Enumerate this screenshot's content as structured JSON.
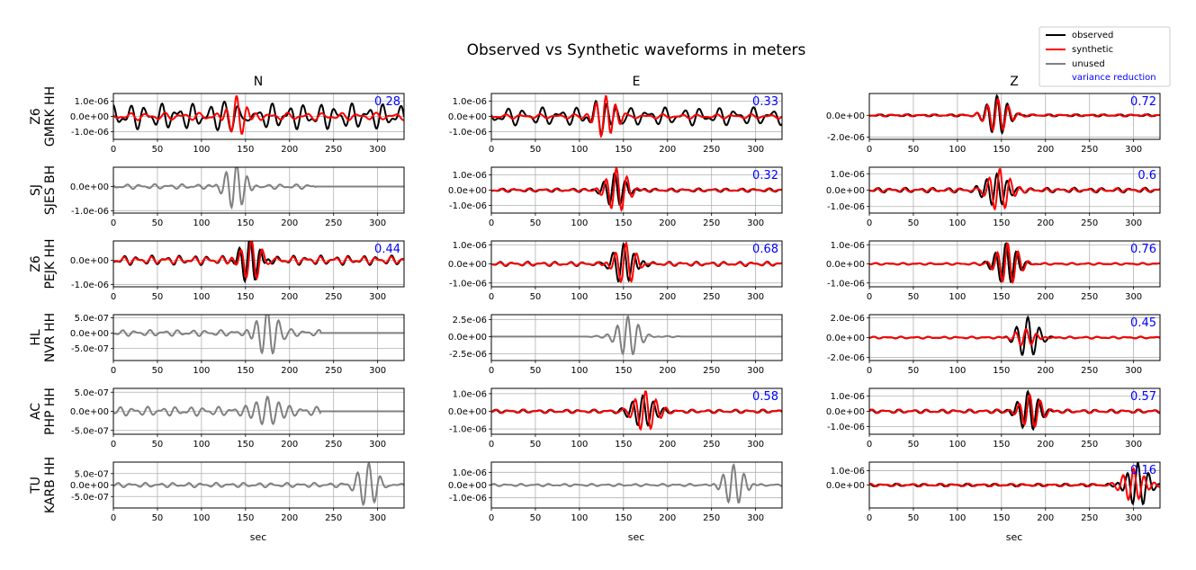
{
  "title": "Observed vs Synthetic waveforms in meters",
  "column_titles": [
    "N",
    "E",
    "Z"
  ],
  "xlabel": "sec",
  "legend": {
    "entries": [
      "observed",
      "synthetic",
      "unused"
    ],
    "extra_text": "variance reduction",
    "placement": "top-right"
  },
  "colors": {
    "observed": "#000000",
    "synthetic": "#ff0000",
    "unused": "#808080",
    "variance_reduction": "#0000ff",
    "grid": "#b0b0b0"
  },
  "chart_data": {
    "type": "line",
    "x_range": [
      0,
      330
    ],
    "x_ticks": [
      0,
      50,
      100,
      150,
      200,
      250,
      300
    ],
    "x_tick_labels": [
      "0",
      "50",
      "100",
      "150",
      "200",
      "250",
      "300"
    ],
    "grid": true,
    "stations": [
      {
        "network": "Z6",
        "station": "GMRK",
        "channel": "HH",
        "label_line1": "Z6",
        "label_line2": "GMRK HH",
        "components": [
          {
            "comp": "N",
            "used": true,
            "ylim": [
              -1.5e-06,
              1.5e-06
            ],
            "yticks": [
              1e-06,
              0,
              -1e-06
            ],
            "ytick_labels": [
              "1.0e-06",
              "0.0e+00",
              "-1.0e-06"
            ],
            "vr": "0.28",
            "obs": {
              "amp": 1e-06,
              "t0": 140,
              "period": 13,
              "peak": 1.35e-06,
              "bg": 8.5e-07,
              "bg_period": 18
            },
            "syn": {
              "amp": 1.3e-06,
              "t0": 140,
              "period": 12,
              "bg": 2.5e-07,
              "bg_period": 20
            }
          },
          {
            "comp": "E",
            "used": true,
            "ylim": [
              -1.5e-06,
              1.5e-06
            ],
            "yticks": [
              1e-06,
              0,
              -1e-06
            ],
            "ytick_labels": [
              "1.0e-06",
              "0.0e+00",
              "-1.0e-06"
            ],
            "vr": "0.33",
            "obs": {
              "amp": 1.1e-06,
              "t0": 130,
              "period": 12,
              "peak": 1.35e-06,
              "bg": 6e-07,
              "bg_period": 20
            },
            "syn": {
              "amp": 1.3e-06,
              "t0": 130,
              "period": 11,
              "bg": 1.5e-07,
              "bg_period": 20
            }
          },
          {
            "comp": "Z",
            "used": true,
            "ylim": [
              -2.2e-06,
              2e-06
            ],
            "yticks": [
              0,
              -2e-06
            ],
            "ytick_labels": [
              "0.0e+00",
              "-2.0e-06"
            ],
            "vr": "0.72",
            "obs": {
              "amp": 1.8e-06,
              "t0": 145,
              "period": 12,
              "peak": 1.9e-06,
              "bg": 1e-07,
              "bg_period": 16
            },
            "syn": {
              "amp": 1.6e-06,
              "t0": 146,
              "period": 12,
              "bg": 1e-07,
              "bg_period": 16
            }
          }
        ]
      },
      {
        "network": "SJ",
        "station": "SJES",
        "channel": "BH",
        "label_line1": "SJ",
        "label_line2": "SJES BH",
        "components": [
          {
            "comp": "N",
            "used": false,
            "ylim": [
              -1.1e-06,
              8e-07
            ],
            "yticks": [
              0,
              -1e-06
            ],
            "ytick_labels": [
              "0.0e+00",
              "-1.0e-06"
            ],
            "vr": "",
            "obs": {
              "amp": 9e-07,
              "t0": 140,
              "period": 12,
              "peak": 1e-06,
              "bg": 1e-07,
              "bg_period": 16,
              "end": 230
            }
          },
          {
            "comp": "E",
            "used": true,
            "ylim": [
              -1.5e-06,
              1.5e-06
            ],
            "yticks": [
              1e-06,
              0,
              -1e-06
            ],
            "ytick_labels": [
              "1.0e-06",
              "0.0e+00",
              "-1.0e-06"
            ],
            "vr": "0.32",
            "obs": {
              "amp": 1.1e-06,
              "t0": 140,
              "period": 12,
              "peak": 1.2e-06,
              "bg": 1.2e-07,
              "bg_period": 16
            },
            "syn": {
              "amp": 1.4e-06,
              "t0": 142,
              "period": 12,
              "bg": 1e-07,
              "bg_period": 16
            }
          },
          {
            "comp": "Z",
            "used": true,
            "ylim": [
              -1.4e-06,
              1.4e-06
            ],
            "yticks": [
              1e-06,
              0,
              -1e-06
            ],
            "ytick_labels": [
              "1.0e-06",
              "0.0e+00",
              "-1.0e-06"
            ],
            "vr": "0.6",
            "obs": {
              "amp": 1.1e-06,
              "t0": 145,
              "period": 12,
              "peak": 1.3e-06,
              "bg": 1.5e-07,
              "bg_period": 16
            },
            "syn": {
              "amp": 1.3e-06,
              "t0": 148,
              "period": 12,
              "bg": 1.3e-07,
              "bg_period": 16
            }
          }
        ]
      },
      {
        "network": "Z6",
        "station": "PEJK",
        "channel": "HH",
        "label_line1": "Z6",
        "label_line2": "PEJK HH",
        "components": [
          {
            "comp": "N",
            "used": true,
            "ylim": [
              -1.1e-06,
              8e-07
            ],
            "yticks": [
              0,
              -1e-06
            ],
            "ytick_labels": [
              "0.0e+00",
              "-1.0e-06"
            ],
            "vr": "0.44",
            "obs": {
              "amp": 8e-07,
              "t0": 155,
              "period": 12,
              "peak": 1.1e-06,
              "bg": 2e-07,
              "bg_period": 16
            },
            "syn": {
              "amp": 8e-07,
              "t0": 157,
              "period": 12,
              "bg": 1.5e-07,
              "bg_period": 16
            }
          },
          {
            "comp": "E",
            "used": true,
            "ylim": [
              -1.2e-06,
              1.2e-06
            ],
            "yticks": [
              1e-06,
              0,
              -1e-06
            ],
            "ytick_labels": [
              "1.0e-06",
              "0.0e+00",
              "-1.0e-06"
            ],
            "vr": "0.68",
            "obs": {
              "amp": 1e-06,
              "t0": 150,
              "period": 12,
              "peak": 1.1e-06,
              "bg": 1.2e-07,
              "bg_period": 16
            },
            "syn": {
              "amp": 1e-06,
              "t0": 153,
              "period": 12,
              "bg": 1e-07,
              "bg_period": 16
            }
          },
          {
            "comp": "Z",
            "used": true,
            "ylim": [
              -1.2e-06,
              1.2e-06
            ],
            "yticks": [
              1e-06,
              0,
              -1e-06
            ],
            "ytick_labels": [
              "1.0e-06",
              "0.0e+00",
              "-1.0e-06"
            ],
            "vr": "0.76",
            "obs": {
              "amp": 1.1e-06,
              "t0": 155,
              "period": 12,
              "peak": 1.2e-06,
              "bg": 5e-08,
              "bg_period": 16
            },
            "syn": {
              "amp": 1.1e-06,
              "t0": 157,
              "period": 12,
              "bg": 5e-08,
              "bg_period": 16
            }
          }
        ]
      },
      {
        "network": "HL",
        "station": "NVR",
        "channel": "HH",
        "label_line1": "HL",
        "label_line2": "NVR HH",
        "components": [
          {
            "comp": "N",
            "used": false,
            "ylim": [
              -9e-07,
              6e-07
            ],
            "yticks": [
              5e-07,
              0,
              -5e-07
            ],
            "ytick_labels": [
              "5.0e-07",
              "0.0e+00",
              "-5.0e-07"
            ],
            "vr": "",
            "obs": {
              "amp": 8e-07,
              "t0": 175,
              "period": 13,
              "peak": 9e-07,
              "bg": 1e-07,
              "bg_period": 16,
              "end": 235
            }
          },
          {
            "comp": "E",
            "used": false,
            "ylim": [
              -3.5e-06,
              3.2e-06
            ],
            "yticks": [
              2.5e-06,
              0,
              -2.5e-06
            ],
            "ytick_labels": [
              "2.5e-06",
              "0.0e+00",
              "-2.5e-06"
            ],
            "vr": "",
            "obs": {
              "amp": 3e-06,
              "t0": 155,
              "period": 12,
              "peak": 3.3e-06,
              "bg": 1e-07,
              "bg_period": 16,
              "start": 110,
              "end": 215
            }
          },
          {
            "comp": "Z",
            "used": true,
            "ylim": [
              -2.3e-06,
              2.3e-06
            ],
            "yticks": [
              2e-06,
              0,
              -2e-06
            ],
            "ytick_labels": [
              "2.0e-06",
              "0.0e+00",
              "-2.0e-06"
            ],
            "vr": "0.45",
            "obs": {
              "amp": 2e-06,
              "t0": 180,
              "period": 13,
              "peak": 2.2e-06,
              "bg": 1e-07,
              "bg_period": 16
            },
            "syn": {
              "amp": 8e-07,
              "t0": 178,
              "period": 12,
              "bg": 1e-07,
              "bg_period": 16
            }
          }
        ]
      },
      {
        "network": "AC",
        "station": "PHP",
        "channel": "HH",
        "label_line1": "AC",
        "label_line2": "PHP HH",
        "components": [
          {
            "comp": "N",
            "used": false,
            "ylim": [
              -6e-07,
              6e-07
            ],
            "yticks": [
              5e-07,
              0,
              -5e-07
            ],
            "ytick_labels": [
              "5.0e-07",
              "0.0e+00",
              "-5.0e-07"
            ],
            "vr": "",
            "obs": {
              "amp": 5e-07,
              "t0": 175,
              "period": 13,
              "peak": 6e-07,
              "bg": 1.2e-07,
              "bg_period": 16,
              "end": 235
            }
          },
          {
            "comp": "E",
            "used": true,
            "ylim": [
              -1.3e-06,
              1.3e-06
            ],
            "yticks": [
              1e-06,
              0,
              -1e-06
            ],
            "ytick_labels": [
              "1.0e-06",
              "0.0e+00",
              "-1.0e-06"
            ],
            "vr": "0.58",
            "obs": {
              "amp": 1e-06,
              "t0": 172,
              "period": 12,
              "peak": 1.1e-06,
              "bg": 1e-07,
              "bg_period": 16
            },
            "syn": {
              "amp": 1.2e-06,
              "t0": 175,
              "period": 12,
              "bg": 1e-07,
              "bg_period": 16
            }
          },
          {
            "comp": "Z",
            "used": true,
            "ylim": [
              -1.5e-06,
              1.5e-06
            ],
            "yticks": [
              1e-06,
              0,
              -1e-06
            ],
            "ytick_labels": [
              "1.0e-06",
              "0.0e+00",
              "-1.0e-06"
            ],
            "vr": "0.57",
            "obs": {
              "amp": 1.3e-06,
              "t0": 180,
              "period": 12,
              "peak": 1.5e-06,
              "bg": 1.2e-07,
              "bg_period": 16
            },
            "syn": {
              "amp": 1.1e-06,
              "t0": 182,
              "period": 12,
              "bg": 1.2e-07,
              "bg_period": 16
            }
          }
        ]
      },
      {
        "network": "TU",
        "station": "KARB",
        "channel": "HH",
        "label_line1": "TU",
        "label_line2": "KARB HH",
        "components": [
          {
            "comp": "N",
            "used": false,
            "ylim": [
              -1e-06,
              1e-06
            ],
            "yticks": [
              5e-07,
              0,
              -5e-07
            ],
            "ytick_labels": [
              "5.0e-07",
              "0.0e+00",
              "-5.0e-07"
            ],
            "vr": "",
            "obs": {
              "amp": 9e-07,
              "t0": 290,
              "period": 13,
              "peak": 1.05e-06,
              "bg": 1e-07,
              "bg_period": 16
            }
          },
          {
            "comp": "E",
            "used": false,
            "ylim": [
              -1.8e-06,
              1.8e-06
            ],
            "yticks": [
              1e-06,
              0,
              -1e-06
            ],
            "ytick_labels": [
              "1.0e-06",
              "0.0e+00",
              "-1.0e-06"
            ],
            "vr": "",
            "obs": {
              "amp": 1.5e-06,
              "t0": 275,
              "period": 12,
              "peak": 1.8e-06,
              "bg": 1e-07,
              "bg_period": 16
            }
          },
          {
            "comp": "Z",
            "used": true,
            "ylim": [
              -1.6e-06,
              1.6e-06
            ],
            "yticks": [
              1e-06,
              0
            ],
            "ytick_labels": [
              "1.0e-06",
              "0.0e+00"
            ],
            "vr": "0.16",
            "obs": {
              "amp": 1.5e-06,
              "t0": 305,
              "period": 12,
              "peak": 1.6e-06,
              "bg": 1e-07,
              "bg_period": 16
            },
            "syn": {
              "amp": 1.2e-06,
              "t0": 300,
              "period": 12,
              "bg": 1e-07,
              "bg_period": 16
            }
          }
        ]
      }
    ]
  }
}
